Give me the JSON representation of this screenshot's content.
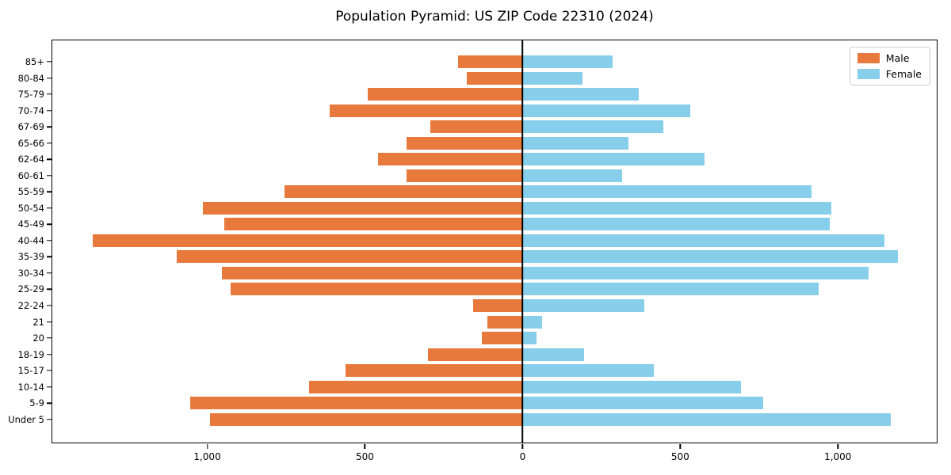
{
  "title": "Population Pyramid: US ZIP Code 22310 (2024)",
  "legend": {
    "male_label": "Male",
    "female_label": "Female",
    "position": "upper right"
  },
  "colors": {
    "male": "#E8793C",
    "female": "#87CEEB",
    "axis": "#000000",
    "legend_border": "#CCCCCC",
    "background": "#FFFFFF"
  },
  "x_axis": {
    "tick_values": [
      -1000,
      -500,
      0,
      500,
      1000
    ],
    "tick_labels": [
      "1,000",
      "500",
      "0",
      "500",
      "1,000"
    ],
    "xlim": [
      -1494,
      1316
    ]
  },
  "chart_data": {
    "type": "bar",
    "orientation": "horizontal-diverging-pyramid",
    "title": "Population Pyramid: US ZIP Code 22310 (2024)",
    "categories_top_to_bottom": [
      "85+",
      "80-84",
      "75-79",
      "70-74",
      "67-69",
      "65-66",
      "62-64",
      "60-61",
      "55-59",
      "50-54",
      "45-49",
      "40-44",
      "35-39",
      "30-34",
      "25-29",
      "22-24",
      "21",
      "20",
      "18-19",
      "15-17",
      "10-14",
      "5-9",
      "Under 5"
    ],
    "series": [
      {
        "name": "Male",
        "side": "left",
        "color": "#E8793C",
        "values": [
          205,
          178,
          493,
          612,
          294,
          368,
          460,
          368,
          757,
          1015,
          947,
          1366,
          1100,
          956,
          927,
          156,
          111,
          129,
          300,
          563,
          678,
          1057,
          992
        ]
      },
      {
        "name": "Female",
        "side": "right",
        "color": "#87CEEB",
        "values": [
          285,
          190,
          370,
          533,
          447,
          337,
          577,
          317,
          919,
          982,
          975,
          1150,
          1193,
          1100,
          941,
          388,
          61,
          45,
          196,
          416,
          693,
          765,
          1170
        ]
      }
    ],
    "xlim": [
      -1494,
      1316
    ],
    "xticks": [
      "1,000",
      "500",
      "0",
      "500",
      "1,000"
    ],
    "grid": false,
    "legend_position": "upper right",
    "zero_axis_line": true
  }
}
